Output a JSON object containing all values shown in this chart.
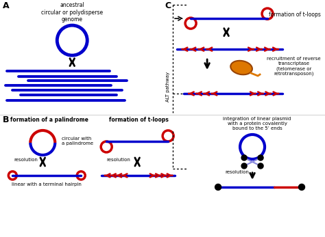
{
  "blue": "#0000cc",
  "red": "#cc0000",
  "black": "#000000",
  "orange": "#dd7700",
  "bg": "#ffffff",
  "panel_A_label": "A",
  "panel_B_label": "B",
  "panel_C_label": "C",
  "text_A_title": "ancestral\ncircular or polydisperse\ngenome",
  "text_C_tloop": "formation of t-loops",
  "text_C_recruit": "recruitment of reverse\ntranscriptase\n(telomerase or\nretrotransposon)",
  "text_C_alt": "ALT pathway",
  "text_B1_title": "formation of a palindrome",
  "text_B1_circ": "circular with\na palindrome",
  "text_B1_res": "resolution",
  "text_B1_lin": "linear with a terminal hairpin",
  "text_B2_title": "formation of t-loops",
  "text_B2_res": "resolution",
  "text_B3_title": "integration of linear plasmid\nwith a protein covalently\nbound to the 5’ ends",
  "text_B3_res": "resolution"
}
